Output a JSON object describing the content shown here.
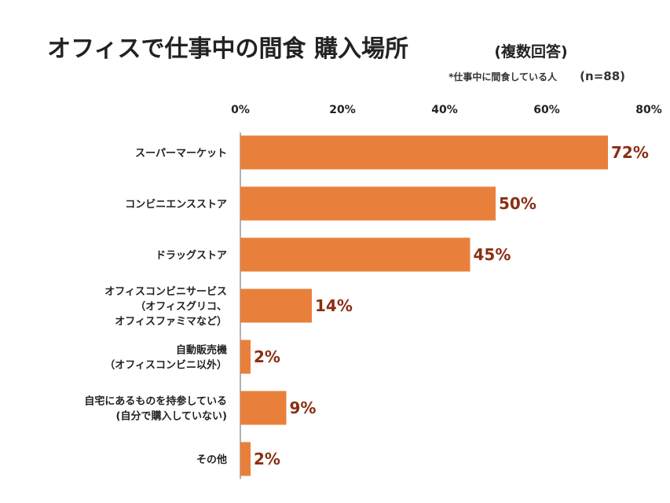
{
  "chart_data": {
    "type": "bar",
    "orientation": "horizontal",
    "title": "オフィスで仕事中の間食 購入場所",
    "subtitle": "(複数回答)",
    "note": "*仕事中に間食している人",
    "sample_size": "(n=88)",
    "xlim": [
      0,
      80
    ],
    "x_ticks": [
      "0%",
      "20%",
      "40%",
      "60%",
      "80%"
    ],
    "x_tick_values": [
      0,
      20,
      40,
      60,
      80
    ],
    "grid": false,
    "legend": "none",
    "categories": [
      [
        "スーパーマーケット"
      ],
      [
        "コンビニエンスストア"
      ],
      [
        "ドラッグストア"
      ],
      [
        "オフィスコンビニサービス",
        "（オフィスグリコ、",
        "オフィスファミマなど）"
      ],
      [
        "自動販売機",
        "（オフィスコンビニ以外）"
      ],
      [
        "自宅にあるものを持参している",
        "(自分で購入していない)"
      ],
      [
        "その他"
      ]
    ],
    "values": [
      72,
      50,
      45,
      14,
      2,
      9,
      2
    ],
    "value_labels": [
      "72%",
      "50%",
      "45%",
      "14%",
      "2%",
      "9%",
      "2%"
    ],
    "colors": {
      "bar": "#E8803C",
      "value_label": "#8B2E12",
      "axis": "#666666"
    }
  }
}
